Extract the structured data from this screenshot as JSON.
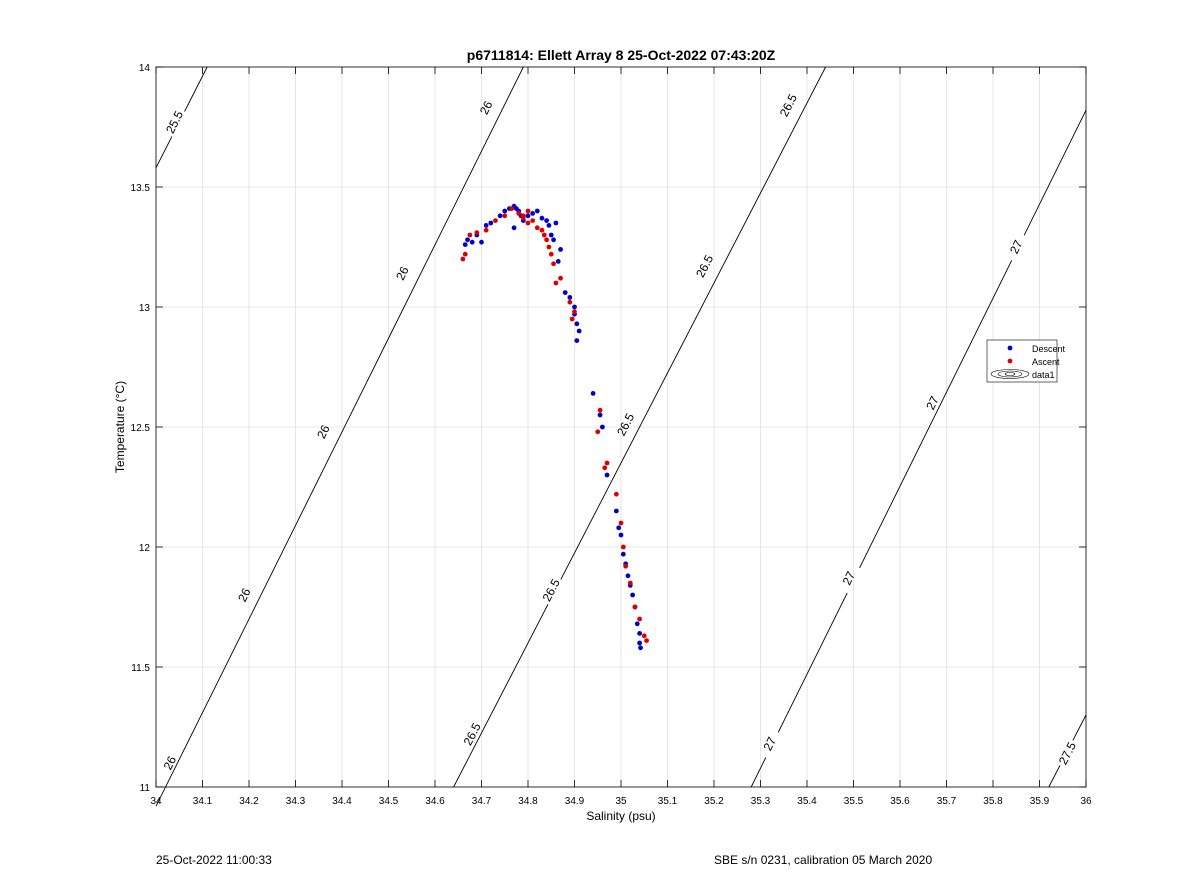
{
  "chart_data": {
    "type": "scatter",
    "title": "p6711814: Ellett Array 8 25-Oct-2022 07:43:20Z",
    "xlabel": "Salinity (psu)",
    "ylabel": "Temperature (°C)",
    "xlim": [
      34,
      36
    ],
    "ylim": [
      11,
      14
    ],
    "xticks": [
      "34",
      "34.1",
      "34.2",
      "34.3",
      "34.4",
      "34.5",
      "34.6",
      "34.7",
      "34.8",
      "34.9",
      "35",
      "35.1",
      "35.2",
      "35.3",
      "35.4",
      "35.5",
      "35.6",
      "35.7",
      "35.8",
      "35.9",
      "36"
    ],
    "yticks": [
      "11",
      "11.5",
      "12",
      "12.5",
      "13",
      "13.5",
      "14"
    ],
    "grid": true,
    "legend_position": "right",
    "legend": [
      "Descent",
      "Ascent",
      "data1"
    ],
    "colors": {
      "descent": "#0000cc",
      "ascent": "#dd0000",
      "contour": "#000000",
      "grid": "#e0e0e0"
    },
    "contours": [
      {
        "level": "25.5",
        "points": [
          [
            34.0,
            13.58
          ],
          [
            34.11,
            14.0
          ]
        ],
        "labels": [
          [
            34.04,
            13.77
          ]
        ]
      },
      {
        "level": "26",
        "points": [
          [
            34.0,
            10.92
          ],
          [
            34.79,
            14.0
          ]
        ],
        "labels": [
          [
            34.03,
            11.1
          ],
          [
            34.19,
            11.8
          ],
          [
            34.36,
            12.48
          ],
          [
            34.53,
            13.14
          ],
          [
            34.71,
            13.83
          ]
        ]
      },
      {
        "level": "26.5",
        "points": [
          [
            34.64,
            11.0
          ],
          [
            35.44,
            14.0
          ]
        ],
        "labels": [
          [
            34.68,
            11.22
          ],
          [
            34.85,
            11.82
          ],
          [
            35.01,
            12.51
          ],
          [
            35.18,
            13.17
          ],
          [
            35.36,
            13.84
          ]
        ]
      },
      {
        "level": "27",
        "points": [
          [
            35.28,
            11.0
          ],
          [
            36.0,
            13.82
          ]
        ],
        "labels": [
          [
            35.32,
            11.18
          ],
          [
            35.49,
            11.87
          ],
          [
            35.67,
            12.6
          ],
          [
            35.85,
            13.25
          ]
        ]
      },
      {
        "level": "27.5",
        "points": [
          [
            35.92,
            11.0
          ],
          [
            36.0,
            11.3
          ]
        ],
        "labels": [
          [
            35.96,
            11.14
          ]
        ]
      }
    ],
    "series": [
      {
        "name": "Descent",
        "x": [
          34.665,
          34.67,
          34.68,
          34.69,
          34.7,
          34.71,
          34.72,
          34.74,
          34.75,
          34.76,
          34.77,
          34.775,
          34.78,
          34.785,
          34.79,
          34.8,
          34.81,
          34.82,
          34.83,
          34.84,
          34.845,
          34.85,
          34.855,
          34.86,
          34.865,
          34.87,
          34.88,
          34.89,
          34.9,
          34.905,
          34.91,
          34.905,
          34.9,
          34.94,
          34.955,
          34.96,
          34.97,
          34.99,
          34.995,
          35.0,
          35.005,
          35.01,
          35.015,
          35.02,
          35.025,
          35.03,
          35.035,
          35.04,
          35.042,
          35.04,
          34.77
        ],
        "y": [
          13.26,
          13.28,
          13.27,
          13.3,
          13.27,
          13.34,
          13.35,
          13.38,
          13.4,
          13.41,
          13.42,
          13.41,
          13.4,
          13.38,
          13.36,
          13.38,
          13.39,
          13.4,
          13.37,
          13.36,
          13.34,
          13.3,
          13.28,
          13.35,
          13.19,
          13.24,
          13.06,
          13.04,
          12.97,
          12.93,
          12.9,
          12.86,
          13.0,
          12.64,
          12.55,
          12.5,
          12.3,
          12.15,
          12.08,
          12.05,
          11.97,
          11.93,
          11.88,
          11.84,
          11.8,
          11.75,
          11.68,
          11.6,
          11.58,
          11.64,
          13.33
        ]
      },
      {
        "name": "Ascent",
        "x": [
          34.66,
          34.665,
          34.675,
          34.69,
          34.71,
          34.73,
          34.75,
          34.765,
          34.78,
          34.79,
          34.8,
          34.81,
          34.82,
          34.83,
          34.835,
          34.84,
          34.845,
          34.85,
          34.855,
          34.86,
          34.87,
          34.89,
          34.895,
          34.9,
          34.955,
          34.95,
          34.965,
          34.97,
          34.99,
          35.0,
          35.005,
          35.01,
          35.02,
          35.03,
          35.04,
          35.05,
          35.055,
          34.79,
          34.8
        ],
        "y": [
          13.2,
          13.22,
          13.3,
          13.31,
          13.32,
          13.36,
          13.38,
          13.41,
          13.39,
          13.37,
          13.35,
          13.36,
          13.33,
          13.32,
          13.3,
          13.28,
          13.25,
          13.22,
          13.18,
          13.1,
          13.12,
          13.02,
          12.95,
          12.98,
          12.57,
          12.48,
          12.33,
          12.35,
          12.22,
          12.1,
          12.0,
          11.92,
          11.85,
          11.75,
          11.7,
          11.63,
          11.61,
          13.38,
          13.4
        ]
      }
    ]
  },
  "footer": {
    "left": "25-Oct-2022 11:00:33",
    "right": "SBE s/n 0231, calibration 05 March 2020"
  }
}
